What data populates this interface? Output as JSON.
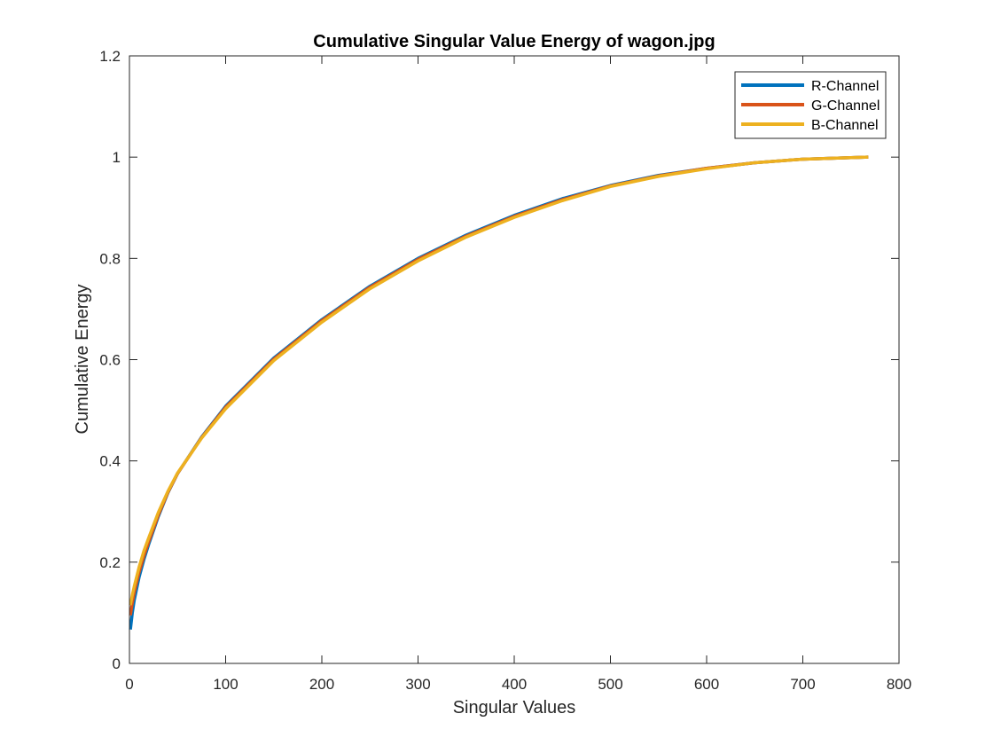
{
  "chart_data": {
    "type": "line",
    "title": "Cumulative Singular Value Energy of wagon.jpg",
    "xlabel": "Singular Values",
    "ylabel": "Cumulative Energy",
    "xlim": [
      0,
      800
    ],
    "ylim": [
      0,
      1.2
    ],
    "xticks": [
      0,
      100,
      200,
      300,
      400,
      500,
      600,
      700,
      800
    ],
    "yticks": [
      0,
      0.2,
      0.4,
      0.6,
      0.8,
      1,
      1.2
    ],
    "xtick_labels": [
      "0",
      "100",
      "200",
      "300",
      "400",
      "500",
      "600",
      "700",
      "800"
    ],
    "ytick_labels": [
      "0",
      "0.2",
      "0.4",
      "0.6",
      "0.8",
      "1",
      "1.2"
    ],
    "grid": false,
    "legend_position": "top-right",
    "series": [
      {
        "name": "R-Channel",
        "color": "#0072BD",
        "x": [
          1,
          3,
          5,
          10,
          15,
          20,
          30,
          40,
          50,
          75,
          100,
          150,
          200,
          250,
          300,
          350,
          400,
          450,
          500,
          550,
          600,
          650,
          700,
          768
        ],
        "values": [
          0.067,
          0.1,
          0.125,
          0.17,
          0.205,
          0.235,
          0.29,
          0.337,
          0.375,
          0.447,
          0.508,
          0.603,
          0.679,
          0.745,
          0.8,
          0.846,
          0.885,
          0.918,
          0.944,
          0.964,
          0.978,
          0.989,
          0.996,
          1.0
        ]
      },
      {
        "name": "G-Channel",
        "color": "#D95319",
        "x": [
          1,
          3,
          5,
          10,
          15,
          20,
          30,
          40,
          50,
          75,
          100,
          150,
          200,
          250,
          300,
          350,
          400,
          450,
          500,
          550,
          600,
          650,
          700,
          768
        ],
        "values": [
          0.095,
          0.12,
          0.14,
          0.18,
          0.212,
          0.24,
          0.293,
          0.338,
          0.375,
          0.446,
          0.506,
          0.601,
          0.677,
          0.743,
          0.798,
          0.844,
          0.883,
          0.916,
          0.943,
          0.963,
          0.978,
          0.989,
          0.996,
          1.0
        ]
      },
      {
        "name": "B-Channel",
        "color": "#EDB120",
        "x": [
          1,
          3,
          5,
          10,
          15,
          20,
          30,
          40,
          50,
          75,
          100,
          150,
          200,
          250,
          300,
          350,
          400,
          450,
          500,
          550,
          600,
          650,
          700,
          768
        ],
        "values": [
          0.115,
          0.135,
          0.152,
          0.19,
          0.222,
          0.248,
          0.298,
          0.34,
          0.376,
          0.445,
          0.503,
          0.598,
          0.674,
          0.74,
          0.795,
          0.842,
          0.881,
          0.914,
          0.942,
          0.962,
          0.977,
          0.989,
          0.996,
          1.0
        ]
      }
    ]
  }
}
